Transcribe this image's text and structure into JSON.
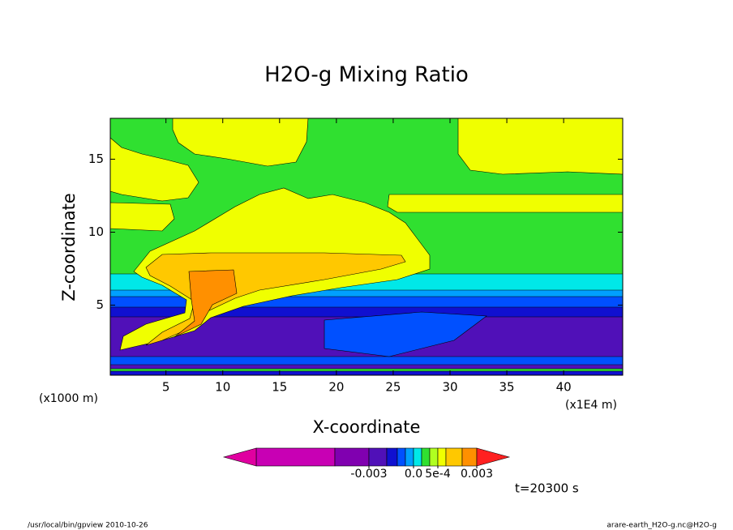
{
  "chart_data": {
    "type": "contour",
    "title": "H2O-g Mixing Ratio",
    "x_label": "X-coordinate",
    "y_label": "Z-coordinate",
    "x_unit_label": "(x1E4 m)",
    "y_unit_label": "(x1000 m)",
    "xlim": [
      0.1,
      45.2
    ],
    "xticks": [
      5,
      10,
      15,
      20,
      25,
      30,
      35,
      40
    ],
    "ylim": [
      0.2,
      17.8
    ],
    "yticks": [
      5,
      10,
      15
    ],
    "colorbar": {
      "levels": [
        -0.01,
        -0.005,
        -0.003,
        -0.002,
        -0.001,
        -0.0005,
        0,
        0.0001,
        0.0002,
        0.0005,
        0.001,
        0.002,
        0.003
      ],
      "colors": [
        "#c800b4",
        "#8000b0",
        "#5010b8",
        "#1010d0",
        "#0050ff",
        "#00a0ff",
        "#00e8e8",
        "#30e030",
        "#b0ff20",
        "#f0ff00",
        "#ffc800",
        "#ff9000"
      ],
      "under_color": "#e000a0",
      "over_color": "#ff2020",
      "ticks": [
        {
          "value": -0.003,
          "label": "-0.003"
        },
        {
          "value": 0,
          "label": "0.0"
        },
        {
          "value": 0.0005,
          "label": "5e-4"
        },
        0.003
      ]
    },
    "time_label": "t=20300 s",
    "footer_left": "/usr/local/bin/gpview  2010-10-26",
    "footer_right": "arare-earth_H2O-g.nc@H2O-g"
  }
}
